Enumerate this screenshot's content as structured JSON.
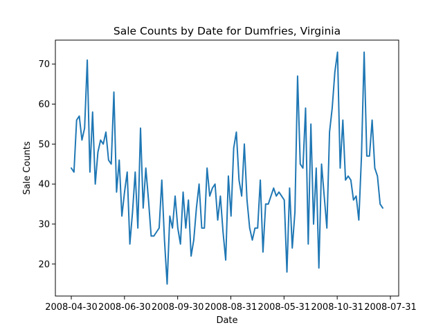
{
  "chart_data": {
    "type": "line",
    "title": "Sale Counts by Date for Dumfries, Virginia",
    "xlabel": "Date",
    "ylabel": "Sale Counts",
    "x_ticks": [
      "2008-04-30",
      "2008-06-30",
      "2008-09-30",
      "2008-08-31",
      "2008-05-31",
      "2008-10-31",
      "2008-07-31"
    ],
    "y_ticks": [
      20,
      30,
      40,
      50,
      60,
      70
    ],
    "ylim": [
      12,
      76
    ],
    "grid": false,
    "color": "#1f77b4",
    "series": [
      {
        "values": [
          44,
          43,
          56,
          57,
          51,
          54,
          71,
          43,
          58,
          40,
          48,
          51,
          50,
          53,
          46,
          45,
          63,
          38,
          46,
          32,
          38,
          43,
          25,
          33,
          43,
          29,
          54,
          34,
          44,
          36,
          27,
          27,
          28,
          29,
          41,
          26,
          15,
          32,
          29,
          37,
          29,
          25,
          38,
          29,
          36,
          22,
          26,
          34,
          40,
          29,
          29,
          44,
          37,
          39,
          40,
          31,
          37,
          28,
          21,
          42,
          32,
          49,
          53,
          41,
          37,
          50,
          36,
          29,
          26,
          29,
          29,
          41,
          23,
          35,
          35,
          37,
          39,
          37,
          38,
          37,
          36,
          18,
          39,
          24,
          33,
          67,
          45,
          44,
          59,
          25,
          55,
          30,
          44,
          19,
          45,
          37,
          29,
          53,
          59,
          68,
          73,
          44,
          56,
          41,
          42,
          41,
          36,
          37,
          31,
          47,
          73,
          47,
          47,
          56,
          44,
          42,
          35,
          34
        ]
      }
    ]
  }
}
